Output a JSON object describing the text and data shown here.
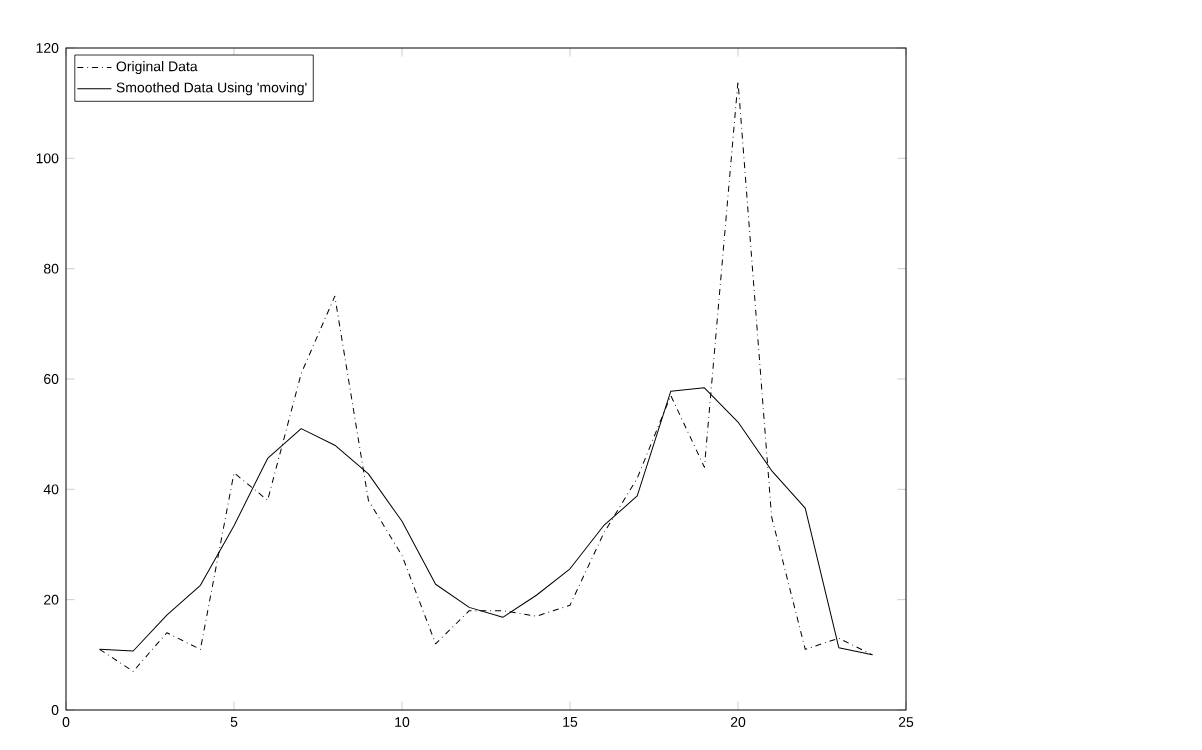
{
  "chart_data": {
    "type": "line",
    "x": [
      1,
      2,
      3,
      4,
      5,
      6,
      7,
      8,
      9,
      10,
      11,
      12,
      13,
      14,
      15,
      16,
      17,
      18,
      19,
      20,
      21,
      22,
      23,
      24
    ],
    "series": [
      {
        "name": "Original Data",
        "color": "#000000",
        "line_style": "dashdot",
        "values": [
          11,
          7,
          14,
          11,
          43,
          38,
          61,
          75,
          38,
          28,
          12,
          18,
          18,
          17,
          19,
          32,
          42,
          57,
          44,
          114,
          35,
          11,
          13,
          10
        ]
      },
      {
        "name": "Smoothed Data Using 'moving'",
        "color": "#000000",
        "line_style": "solid",
        "values": [
          11,
          10.7,
          17.2,
          22.6,
          33.4,
          45.6,
          51,
          48,
          42.8,
          34.2,
          22.8,
          18.6,
          16.8,
          20.8,
          25.6,
          33.4,
          38.8,
          57.8,
          58.4,
          52.2,
          43.4,
          36.6,
          11.3,
          10
        ]
      }
    ],
    "xlim": [
      0,
      25
    ],
    "xticks": [
      0,
      5,
      10,
      15,
      20,
      25
    ],
    "ylim": [
      0,
      120
    ],
    "yticks": [
      0,
      20,
      40,
      60,
      80,
      100,
      120
    ],
    "legend": "top left",
    "grid": false,
    "marker": "none"
  }
}
